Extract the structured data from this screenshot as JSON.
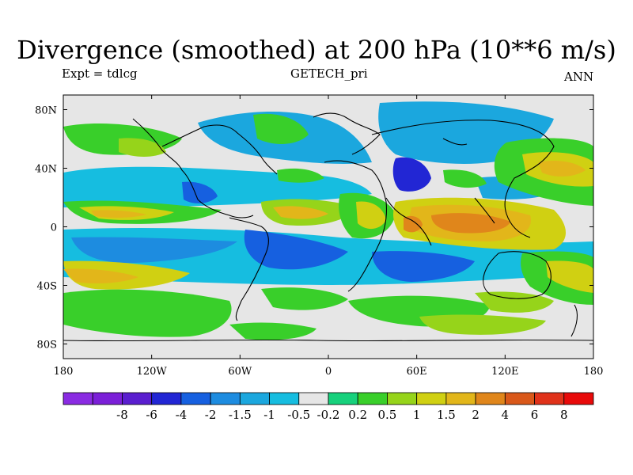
{
  "title": "Divergence (smoothed) at 200 hPa (10**6 m/s)",
  "experiment": "Expt = tdlcg",
  "run_name": "GETECH_pri",
  "season": "ANN",
  "map": {
    "lat_ticks": [
      "80N",
      "40N",
      "0",
      "40S",
      "80S"
    ],
    "lat_values": [
      80,
      40,
      0,
      -40,
      -80
    ],
    "lon_ticks": [
      "180",
      "120W",
      "60W",
      "0",
      "60E",
      "120E",
      "180"
    ],
    "lon_values": [
      -180,
      -120,
      -60,
      0,
      60,
      120,
      180
    ]
  },
  "colorbar": {
    "colors": [
      "#8a2be2",
      "#7b1fd8",
      "#5a1ecf",
      "#2226d4",
      "#1660e0",
      "#1d8ce0",
      "#1ba7de",
      "#16bde0",
      "#e6e6e6",
      "#17d17c",
      "#39cf2a",
      "#96d41a",
      "#d0d012",
      "#e2b61a",
      "#e0861b",
      "#d9581a",
      "#e0321a",
      "#e80a0a"
    ],
    "labels": [
      "-8",
      "-6",
      "-4",
      "-2",
      "-1.5",
      "-1",
      "-0.5",
      "-0.2",
      "0.2",
      "0.5",
      "1",
      "1.5",
      "2",
      "4",
      "6",
      "8"
    ]
  }
}
